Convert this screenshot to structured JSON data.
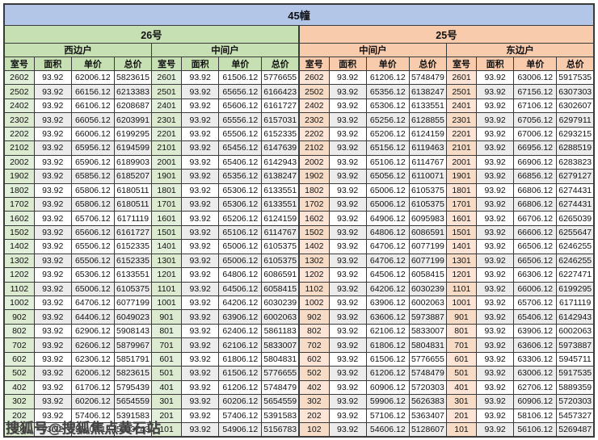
{
  "page": {
    "title": "45幢"
  },
  "watermark": {
    "text": "搜狐号@搜狐焦点黄石站"
  },
  "colors": {
    "title_band": "#b4c6e7",
    "building_26_header": "#c6e0b4",
    "building_25_header": "#f8cbad",
    "room_col_26": "#e2efda",
    "room_col_25": "#fce4d6",
    "row_stripe": "#ececec",
    "grid_border": "#3a3a3a"
  },
  "table": {
    "title": "45幢",
    "buildings": [
      {
        "label": "26号",
        "units": [
          "西边户",
          "中间户"
        ]
      },
      {
        "label": "25号",
        "units": [
          "中间户",
          "东边户"
        ]
      }
    ],
    "column_headers": [
      "室号",
      "面积",
      "单价",
      "总价"
    ],
    "groups": [
      {
        "building": "26号",
        "unit": "西边户",
        "rows": [
          [
            "2602",
            "93.92",
            "62006.12",
            "5823615"
          ],
          [
            "2502",
            "93.92",
            "66156.12",
            "6213383"
          ],
          [
            "2402",
            "93.92",
            "66106.12",
            "6208687"
          ],
          [
            "2302",
            "93.92",
            "66056.12",
            "6203991"
          ],
          [
            "2202",
            "93.92",
            "66006.12",
            "6199295"
          ],
          [
            "2102",
            "93.92",
            "65956.12",
            "6194599"
          ],
          [
            "2002",
            "93.92",
            "65906.12",
            "6189903"
          ],
          [
            "1902",
            "93.92",
            "65856.12",
            "6185207"
          ],
          [
            "1802",
            "93.92",
            "65806.12",
            "6180511"
          ],
          [
            "1702",
            "93.92",
            "65806.12",
            "6180511"
          ],
          [
            "1602",
            "93.92",
            "65706.12",
            "6171119"
          ],
          [
            "1502",
            "93.92",
            "65606.12",
            "6161727"
          ],
          [
            "1402",
            "93.92",
            "65506.12",
            "6152335"
          ],
          [
            "1302",
            "93.92",
            "65506.12",
            "6152335"
          ],
          [
            "1202",
            "93.92",
            "65306.12",
            "6133551"
          ],
          [
            "1102",
            "93.92",
            "65006.12",
            "6105375"
          ],
          [
            "1002",
            "93.92",
            "64706.12",
            "6077199"
          ],
          [
            "902",
            "93.92",
            "64406.12",
            "6049023"
          ],
          [
            "802",
            "93.92",
            "62906.12",
            "5908143"
          ],
          [
            "702",
            "93.92",
            "62606.12",
            "5879967"
          ],
          [
            "602",
            "93.92",
            "62306.12",
            "5851791"
          ],
          [
            "502",
            "93.92",
            "62006.12",
            "5823615"
          ],
          [
            "402",
            "93.92",
            "61706.12",
            "5795439"
          ],
          [
            "302",
            "93.92",
            "60206.12",
            "5654559"
          ],
          [
            "202",
            "93.92",
            "57406.12",
            "5391583"
          ],
          [
            "102",
            "93.92",
            "55406.12",
            "5203743"
          ]
        ]
      },
      {
        "building": "26号",
        "unit": "中间户",
        "rows": [
          [
            "2601",
            "93.92",
            "61506.12",
            "5776655"
          ],
          [
            "2501",
            "93.92",
            "65656.12",
            "6166423"
          ],
          [
            "2401",
            "93.92",
            "65606.12",
            "6161727"
          ],
          [
            "2301",
            "93.92",
            "65556.12",
            "6157031"
          ],
          [
            "2201",
            "93.92",
            "65506.12",
            "6152335"
          ],
          [
            "2101",
            "93.92",
            "65456.12",
            "6147639"
          ],
          [
            "2001",
            "93.92",
            "65406.12",
            "6142943"
          ],
          [
            "1901",
            "93.92",
            "65356.12",
            "6138247"
          ],
          [
            "1801",
            "93.92",
            "65306.12",
            "6133551"
          ],
          [
            "1701",
            "93.92",
            "65306.12",
            "6133551"
          ],
          [
            "1601",
            "93.92",
            "65206.12",
            "6124159"
          ],
          [
            "1501",
            "93.92",
            "65106.12",
            "6114767"
          ],
          [
            "1401",
            "93.92",
            "65006.12",
            "6105375"
          ],
          [
            "1301",
            "93.92",
            "65006.12",
            "6105375"
          ],
          [
            "1201",
            "93.92",
            "64806.12",
            "6086591"
          ],
          [
            "1101",
            "93.92",
            "64506.12",
            "6058415"
          ],
          [
            "1001",
            "93.92",
            "64206.12",
            "6030239"
          ],
          [
            "901",
            "93.92",
            "63906.12",
            "6002063"
          ],
          [
            "801",
            "93.92",
            "62406.12",
            "5861183"
          ],
          [
            "701",
            "93.92",
            "62106.12",
            "5833007"
          ],
          [
            "601",
            "93.92",
            "61806.12",
            "5804831"
          ],
          [
            "501",
            "93.92",
            "61506.12",
            "5776655"
          ],
          [
            "401",
            "93.92",
            "61206.12",
            "5748479"
          ],
          [
            "301",
            "93.92",
            "60206.12",
            "5654559"
          ],
          [
            "201",
            "93.92",
            "57406.12",
            "5391583"
          ],
          [
            "101",
            "93.92",
            "54906.12",
            "5156783"
          ]
        ]
      },
      {
        "building": "25号",
        "unit": "中间户",
        "rows": [
          [
            "2602",
            "93.92",
            "61206.12",
            "5748479"
          ],
          [
            "2502",
            "93.92",
            "65356.12",
            "6138247"
          ],
          [
            "2402",
            "93.92",
            "65306.12",
            "6133551"
          ],
          [
            "2302",
            "93.92",
            "65256.12",
            "6128855"
          ],
          [
            "2202",
            "93.92",
            "65206.12",
            "6124159"
          ],
          [
            "2102",
            "93.92",
            "65156.12",
            "6119463"
          ],
          [
            "2002",
            "93.92",
            "65106.12",
            "6114767"
          ],
          [
            "1902",
            "93.92",
            "65056.12",
            "6110071"
          ],
          [
            "1802",
            "93.92",
            "65006.12",
            "6105375"
          ],
          [
            "1702",
            "93.92",
            "65006.12",
            "6105375"
          ],
          [
            "1602",
            "93.92",
            "64906.12",
            "6095983"
          ],
          [
            "1502",
            "93.92",
            "64806.12",
            "6086591"
          ],
          [
            "1402",
            "93.92",
            "64706.12",
            "6077199"
          ],
          [
            "1302",
            "93.92",
            "64706.12",
            "6077199"
          ],
          [
            "1202",
            "93.92",
            "64506.12",
            "6058415"
          ],
          [
            "1102",
            "93.92",
            "64206.12",
            "6030239"
          ],
          [
            "1002",
            "93.92",
            "63906.12",
            "6002063"
          ],
          [
            "902",
            "93.92",
            "63606.12",
            "5973887"
          ],
          [
            "802",
            "93.92",
            "62106.12",
            "5833007"
          ],
          [
            "702",
            "93.92",
            "61806.12",
            "5804831"
          ],
          [
            "602",
            "93.92",
            "61506.12",
            "5776655"
          ],
          [
            "502",
            "93.92",
            "61206.12",
            "5748479"
          ],
          [
            "402",
            "93.92",
            "60906.12",
            "5720303"
          ],
          [
            "302",
            "93.92",
            "59906.12",
            "5626383"
          ],
          [
            "202",
            "93.92",
            "57106.12",
            "5363407"
          ],
          [
            "102",
            "93.92",
            "54606.12",
            "5128607"
          ]
        ]
      },
      {
        "building": "25号",
        "unit": "东边户",
        "rows": [
          [
            "2601",
            "93.92",
            "63006.12",
            "5917535"
          ],
          [
            "2501",
            "93.92",
            "67156.12",
            "6307303"
          ],
          [
            "2401",
            "93.92",
            "67106.12",
            "6302607"
          ],
          [
            "2301",
            "93.92",
            "67056.12",
            "6297911"
          ],
          [
            "2201",
            "93.92",
            "67006.12",
            "6293215"
          ],
          [
            "2101",
            "93.92",
            "66956.12",
            "6288519"
          ],
          [
            "2001",
            "93.92",
            "66906.12",
            "6283823"
          ],
          [
            "1901",
            "93.92",
            "66856.12",
            "6279127"
          ],
          [
            "1801",
            "93.92",
            "66806.12",
            "6274431"
          ],
          [
            "1701",
            "93.92",
            "66806.12",
            "6274431"
          ],
          [
            "1601",
            "93.92",
            "66706.12",
            "6265039"
          ],
          [
            "1501",
            "93.92",
            "66606.12",
            "6255647"
          ],
          [
            "1401",
            "93.92",
            "66506.12",
            "6246255"
          ],
          [
            "1301",
            "93.92",
            "66506.12",
            "6246255"
          ],
          [
            "1201",
            "93.92",
            "66306.12",
            "6227471"
          ],
          [
            "1101",
            "93.92",
            "66006.12",
            "6199295"
          ],
          [
            "1001",
            "93.92",
            "65706.12",
            "6171119"
          ],
          [
            "901",
            "93.92",
            "65406.12",
            "6142943"
          ],
          [
            "801",
            "93.92",
            "63906.12",
            "6002063"
          ],
          [
            "701",
            "93.92",
            "63606.12",
            "5973887"
          ],
          [
            "601",
            "93.92",
            "63306.12",
            "5945711"
          ],
          [
            "501",
            "93.92",
            "63006.12",
            "5917535"
          ],
          [
            "401",
            "93.92",
            "62706.12",
            "5889359"
          ],
          [
            "301",
            "93.92",
            "60906.12",
            "5720303"
          ],
          [
            "201",
            "93.92",
            "58106.12",
            "5457327"
          ],
          [
            "101",
            "93.92",
            "56106.12",
            "5269487"
          ]
        ]
      }
    ]
  }
}
